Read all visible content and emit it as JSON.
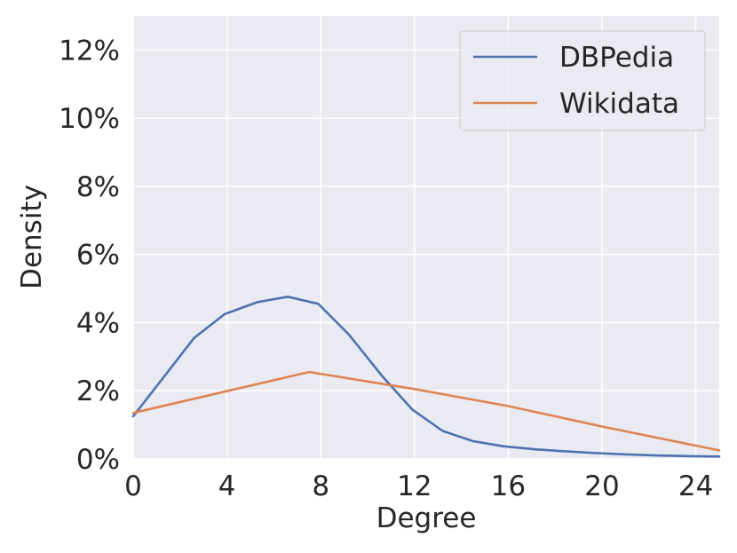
{
  "chart_data": {
    "type": "line",
    "xlabel": "Degree",
    "ylabel": "Density",
    "xlim": [
      0,
      25
    ],
    "ylim": [
      0,
      0.13
    ],
    "x_ticks": [
      0,
      4,
      8,
      12,
      16,
      20,
      24
    ],
    "x_tick_labels": [
      "0",
      "4",
      "8",
      "12",
      "16",
      "20",
      "24"
    ],
    "y_ticks": [
      0,
      0.02,
      0.04,
      0.06,
      0.08,
      0.1,
      0.12
    ],
    "y_tick_labels": [
      "0%",
      "2%",
      "4%",
      "6%",
      "8%",
      "10%",
      "12%"
    ],
    "grid": true,
    "background": "#eaeaf2",
    "legend_position": "top-right",
    "series": [
      {
        "name": "DBPedia",
        "color": "#4c72b0",
        "x": [
          0,
          1.3,
          2.6,
          3.9,
          5.3,
          6.6,
          7.9,
          9.2,
          10.6,
          11.9,
          13.2,
          14.5,
          15.8,
          17.2,
          18.5,
          19.8,
          21.1,
          22.4,
          23.8,
          25
        ],
        "y": [
          0.0125,
          0.024,
          0.0355,
          0.0425,
          0.046,
          0.0476,
          0.0455,
          0.0365,
          0.0245,
          0.0145,
          0.0082,
          0.0052,
          0.0037,
          0.0028,
          0.0022,
          0.0017,
          0.0013,
          0.001,
          0.0008,
          0.0007
        ]
      },
      {
        "name": "Wikidata",
        "color": "#dd8452",
        "x": [
          0,
          7.5,
          12,
          16,
          20,
          25
        ],
        "y": [
          0.0135,
          0.0255,
          0.0205,
          0.0155,
          0.0095,
          0.0025
        ]
      }
    ]
  }
}
